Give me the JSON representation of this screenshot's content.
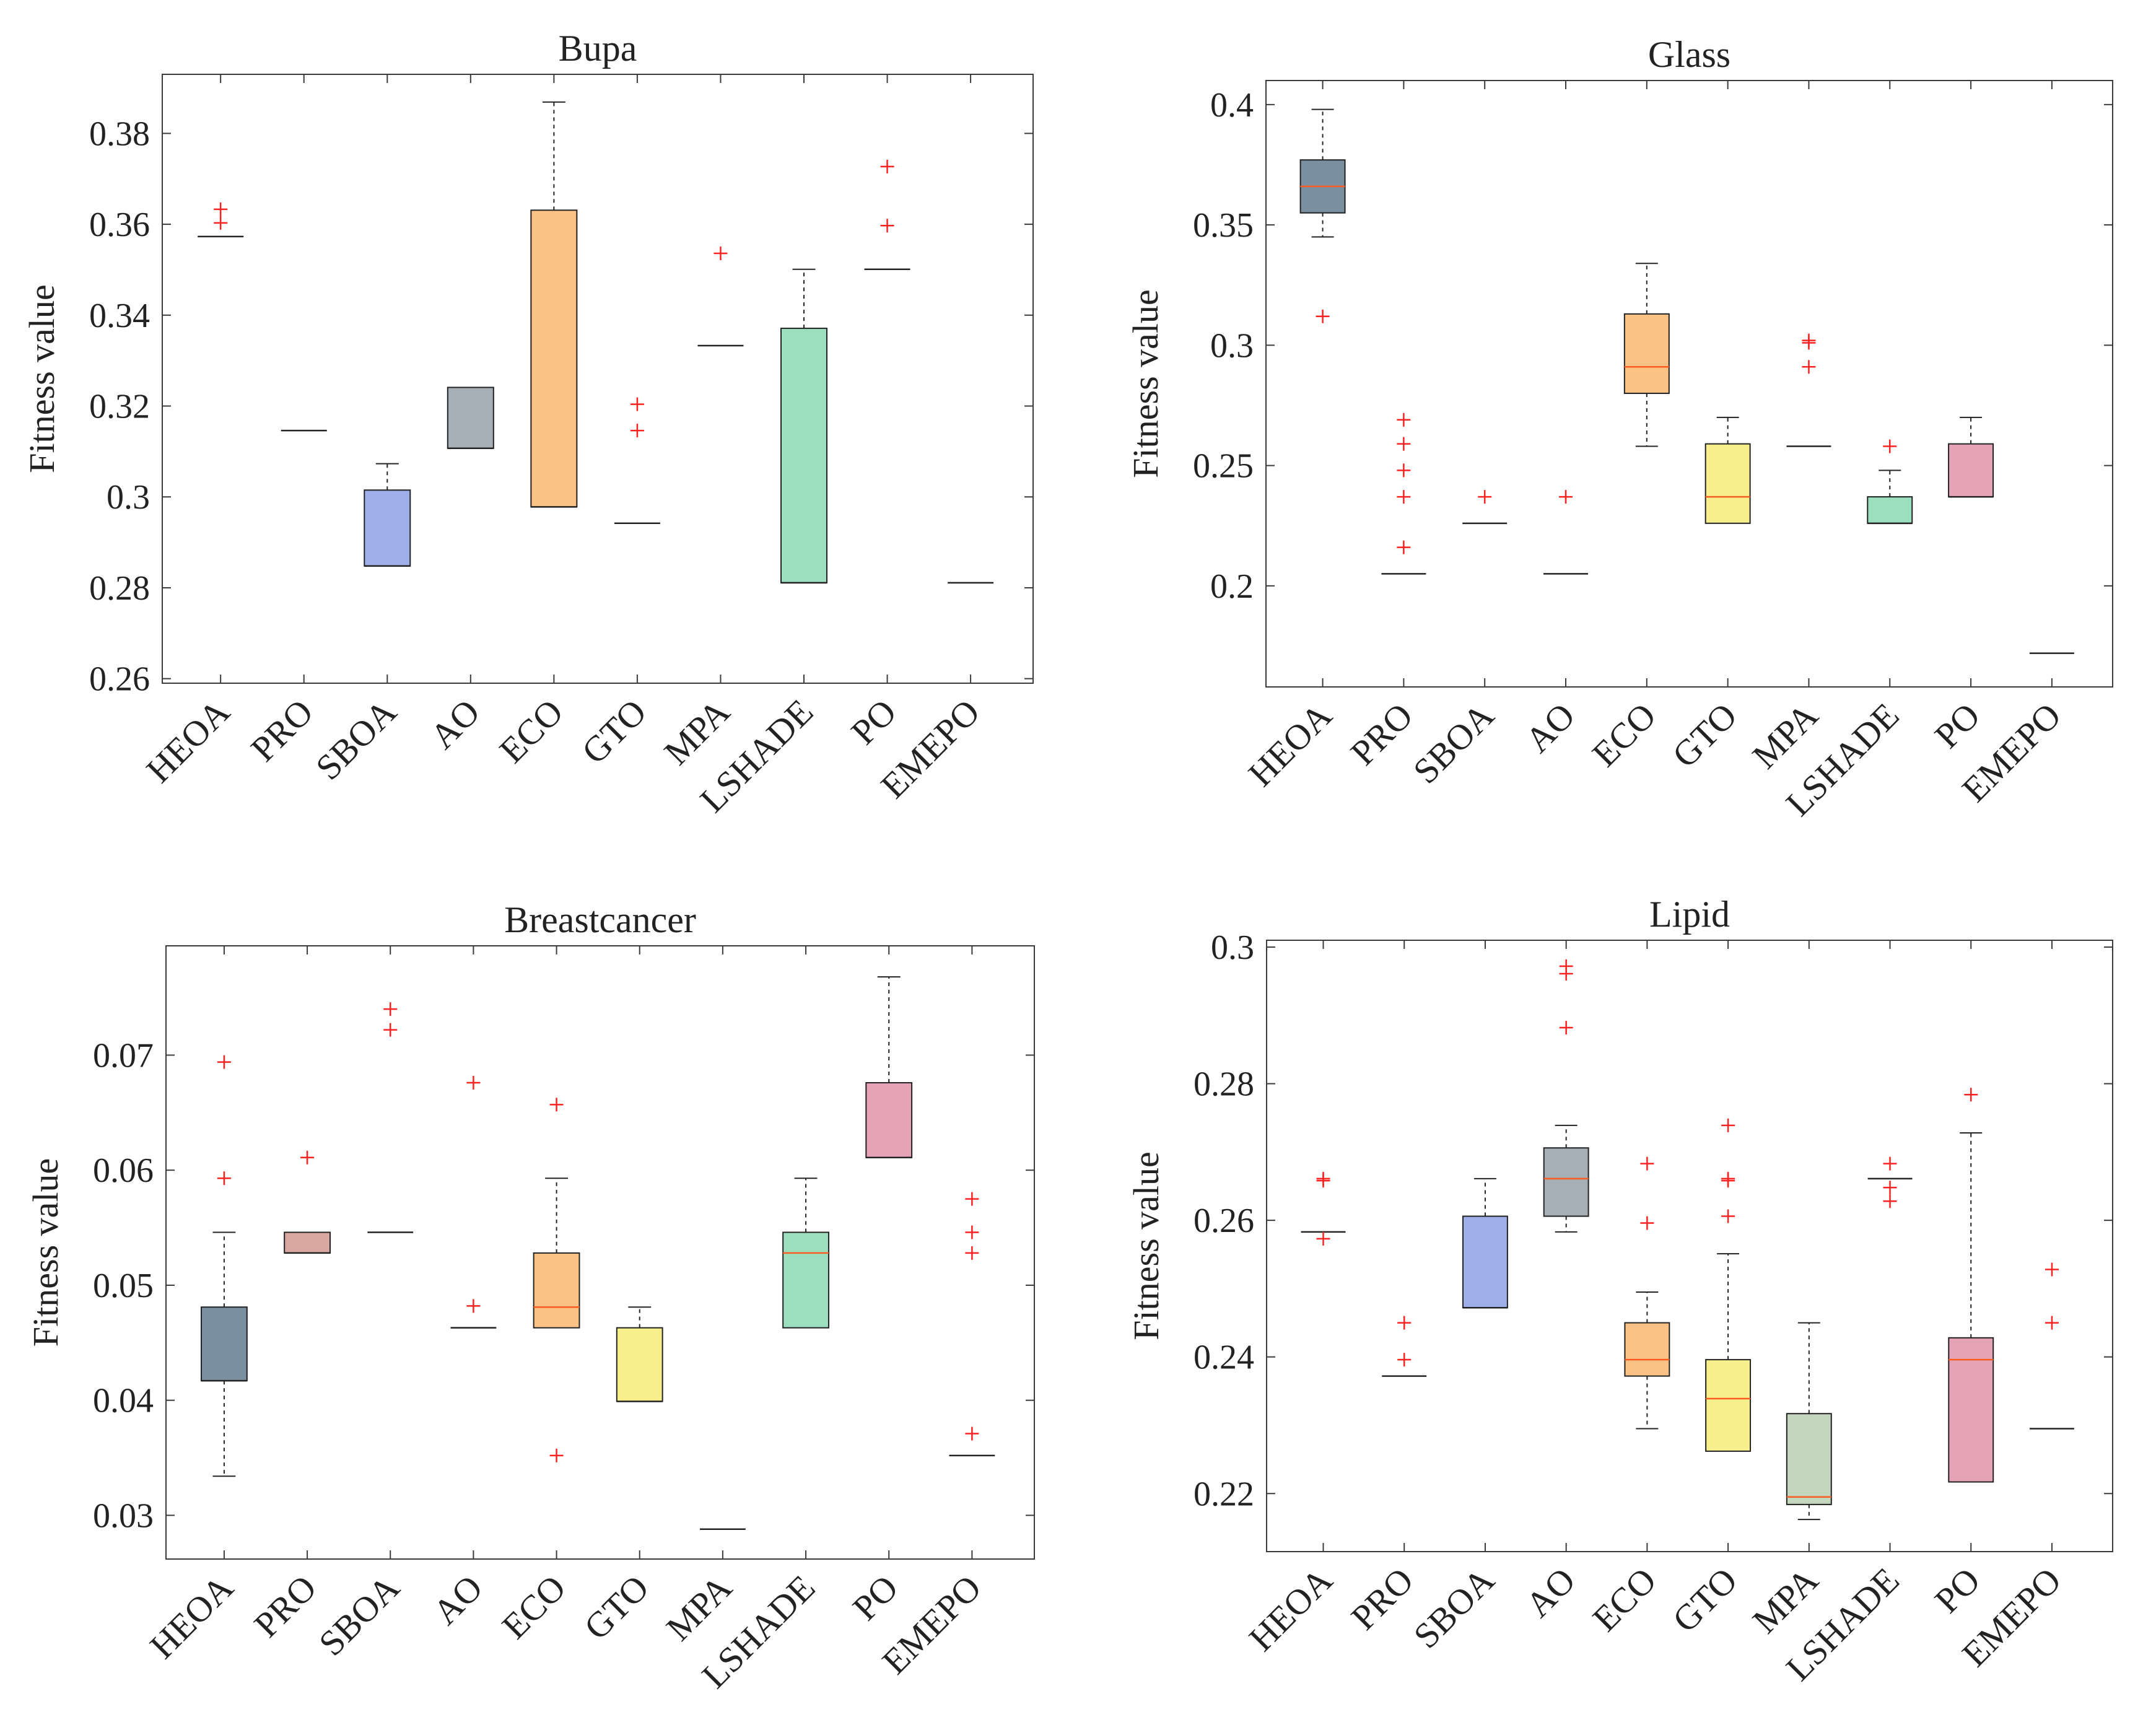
{
  "chart_data": [
    {
      "type": "boxplot",
      "title": "Bupa",
      "ylabel": "Fitness value",
      "xlabel": "",
      "ylim": [
        0.259,
        0.393
      ],
      "yticks": [
        0.26,
        0.28,
        0.3,
        0.32,
        0.34,
        0.36,
        0.38
      ],
      "ytick_labels": [
        "0.26",
        "0.28",
        "0.3",
        "0.32",
        "0.34",
        "0.36",
        "0.38"
      ],
      "categories": [
        "HEOA",
        "PRO",
        "SBOA",
        "AO",
        "ECO",
        "GTO",
        "MPA",
        "LSHADE",
        "PO",
        "EMEPO"
      ],
      "boxes": [
        {
          "name": "HEOA",
          "q1": 0.3573,
          "median": 0.3573,
          "q3": 0.3573,
          "whisker_low": 0.3573,
          "whisker_high": 0.3573,
          "outliers": [
            0.3603,
            0.3633
          ],
          "color": "#7a8fa0"
        },
        {
          "name": "PRO",
          "q1": 0.3146,
          "median": 0.3146,
          "q3": 0.3146,
          "whisker_low": 0.3146,
          "whisker_high": 0.3146,
          "outliers": [],
          "color": "#d8a8a0"
        },
        {
          "name": "SBOA",
          "q1": 0.2848,
          "median": 0.2848,
          "q3": 0.3015,
          "whisker_low": 0.2848,
          "whisker_high": 0.3073,
          "outliers": [],
          "color": "#9eaee8"
        },
        {
          "name": "AO",
          "q1": 0.3107,
          "median": 0.3107,
          "q3": 0.3241,
          "whisker_low": 0.3107,
          "whisker_high": 0.3241,
          "outliers": [],
          "color": "#a6aeb6"
        },
        {
          "name": "ECO",
          "q1": 0.2978,
          "median": 0.2978,
          "q3": 0.3631,
          "whisker_low": 0.2978,
          "whisker_high": 0.3869,
          "outliers": [],
          "color": "#fcc285"
        },
        {
          "name": "GTO",
          "q1": 0.2942,
          "median": 0.2942,
          "q3": 0.2942,
          "whisker_low": 0.2942,
          "whisker_high": 0.2942,
          "outliers": [
            0.3146,
            0.3204
          ],
          "color": "#f7ee8c"
        },
        {
          "name": "MPA",
          "q1": 0.3333,
          "median": 0.3333,
          "q3": 0.3333,
          "whisker_low": 0.3333,
          "whisker_high": 0.3333,
          "outliers": [
            0.3536
          ],
          "color": "#c5d6bf"
        },
        {
          "name": "LSHADE",
          "q1": 0.2811,
          "median": 0.2811,
          "q3": 0.3371,
          "whisker_low": 0.2811,
          "whisker_high": 0.3501,
          "outliers": [],
          "color": "#9cdfbf"
        },
        {
          "name": "PO",
          "q1": 0.3501,
          "median": 0.3501,
          "q3": 0.3501,
          "whisker_low": 0.3501,
          "whisker_high": 0.3501,
          "outliers": [
            0.3597,
            0.3727
          ],
          "color": "#e6a3b8"
        },
        {
          "name": "EMEPO",
          "q1": 0.2811,
          "median": 0.2811,
          "q3": 0.2811,
          "whisker_low": 0.2811,
          "whisker_high": 0.2811,
          "outliers": [],
          "color": "#eeeeee"
        }
      ]
    },
    {
      "type": "boxplot",
      "title": "Glass",
      "ylabel": "Fitness value",
      "xlabel": "",
      "ylim": [
        0.158,
        0.41
      ],
      "yticks": [
        0.2,
        0.25,
        0.3,
        0.35,
        0.4
      ],
      "ytick_labels": [
        "0.2",
        "0.25",
        "0.3",
        "0.35",
        "0.4"
      ],
      "categories": [
        "HEOA",
        "PRO",
        "SBOA",
        "AO",
        "ECO",
        "GTO",
        "MPA",
        "LSHADE",
        "PO",
        "EMEPO"
      ],
      "boxes": [
        {
          "name": "HEOA",
          "q1": 0.355,
          "median": 0.366,
          "q3": 0.377,
          "whisker_low": 0.345,
          "whisker_high": 0.398,
          "outliers": [
            0.312
          ],
          "color": "#7a8fa0"
        },
        {
          "name": "PRO",
          "q1": 0.205,
          "median": 0.205,
          "q3": 0.205,
          "whisker_low": 0.205,
          "whisker_high": 0.205,
          "outliers": [
            0.216,
            0.237,
            0.248,
            0.259,
            0.269
          ],
          "color": "#d8a8a0"
        },
        {
          "name": "SBOA",
          "q1": 0.226,
          "median": 0.226,
          "q3": 0.226,
          "whisker_low": 0.226,
          "whisker_high": 0.226,
          "outliers": [
            0.237
          ],
          "color": "#9eaee8"
        },
        {
          "name": "AO",
          "q1": 0.205,
          "median": 0.205,
          "q3": 0.205,
          "whisker_low": 0.205,
          "whisker_high": 0.205,
          "outliers": [
            0.237
          ],
          "color": "#a6aeb6"
        },
        {
          "name": "ECO",
          "q1": 0.28,
          "median": 0.291,
          "q3": 0.313,
          "whisker_low": 0.258,
          "whisker_high": 0.334,
          "outliers": [],
          "color": "#fcc285"
        },
        {
          "name": "GTO",
          "q1": 0.226,
          "median": 0.237,
          "q3": 0.259,
          "whisker_low": 0.226,
          "whisker_high": 0.27,
          "outliers": [],
          "color": "#f7ee8c"
        },
        {
          "name": "MPA",
          "q1": 0.258,
          "median": 0.258,
          "q3": 0.258,
          "whisker_low": 0.258,
          "whisker_high": 0.258,
          "outliers": [
            0.291,
            0.301,
            0.302
          ],
          "color": "#c5d6bf"
        },
        {
          "name": "LSHADE",
          "q1": 0.226,
          "median": 0.226,
          "q3": 0.237,
          "whisker_low": 0.226,
          "whisker_high": 0.248,
          "outliers": [
            0.258
          ],
          "color": "#9cdfbf"
        },
        {
          "name": "PO",
          "q1": 0.237,
          "median": 0.237,
          "q3": 0.259,
          "whisker_low": 0.237,
          "whisker_high": 0.27,
          "outliers": [],
          "color": "#e6a3b8"
        },
        {
          "name": "EMEPO",
          "q1": 0.172,
          "median": 0.172,
          "q3": 0.172,
          "whisker_low": 0.172,
          "whisker_high": 0.172,
          "outliers": [],
          "color": "#eeeeee"
        }
      ]
    },
    {
      "type": "boxplot",
      "title": "Breastcancer",
      "ylabel": "Fitness value",
      "xlabel": "",
      "ylim": [
        0.0262,
        0.0795
      ],
      "yticks": [
        0.03,
        0.04,
        0.05,
        0.06,
        0.07
      ],
      "ytick_labels": [
        "0.03",
        "0.04",
        "0.05",
        "0.06",
        "0.07"
      ],
      "categories": [
        "HEOA",
        "PRO",
        "SBOA",
        "AO",
        "ECO",
        "GTO",
        "MPA",
        "LSHADE",
        "PO",
        "EMEPO"
      ],
      "boxes": [
        {
          "name": "HEOA",
          "q1": 0.0417,
          "median": 0.0417,
          "q3": 0.0481,
          "whisker_low": 0.0334,
          "whisker_high": 0.0546,
          "outliers": [
            0.0593,
            0.0694
          ],
          "color": "#7a8fa0"
        },
        {
          "name": "PRO",
          "q1": 0.0528,
          "median": 0.0528,
          "q3": 0.0546,
          "whisker_low": 0.0528,
          "whisker_high": 0.0546,
          "outliers": [
            0.0611
          ],
          "color": "#d8a8a0"
        },
        {
          "name": "SBOA",
          "q1": 0.0546,
          "median": 0.0546,
          "q3": 0.0546,
          "whisker_low": 0.0546,
          "whisker_high": 0.0546,
          "outliers": [
            0.0722,
            0.074
          ],
          "color": "#9eaee8"
        },
        {
          "name": "AO",
          "q1": 0.0463,
          "median": 0.0463,
          "q3": 0.0463,
          "whisker_low": 0.0463,
          "whisker_high": 0.0463,
          "outliers": [
            0.0482,
            0.0676
          ],
          "color": "#a6aeb6"
        },
        {
          "name": "ECO",
          "q1": 0.0463,
          "median": 0.0481,
          "q3": 0.0528,
          "whisker_low": 0.0463,
          "whisker_high": 0.0593,
          "outliers": [
            0.0352,
            0.0657
          ],
          "color": "#fcc285"
        },
        {
          "name": "GTO",
          "q1": 0.0399,
          "median": 0.0399,
          "q3": 0.0463,
          "whisker_low": 0.0399,
          "whisker_high": 0.0481,
          "outliers": [],
          "color": "#f7ee8c"
        },
        {
          "name": "MPA",
          "q1": 0.0288,
          "median": 0.0288,
          "q3": 0.0288,
          "whisker_low": 0.0288,
          "whisker_high": 0.0288,
          "outliers": [],
          "color": "#c5d6bf"
        },
        {
          "name": "LSHADE",
          "q1": 0.0463,
          "median": 0.0528,
          "q3": 0.0546,
          "whisker_low": 0.0463,
          "whisker_high": 0.0593,
          "outliers": [],
          "color": "#9cdfbf"
        },
        {
          "name": "PO",
          "q1": 0.0611,
          "median": 0.0611,
          "q3": 0.0676,
          "whisker_low": 0.0611,
          "whisker_high": 0.0768,
          "outliers": [],
          "color": "#e6a3b8"
        },
        {
          "name": "EMEPO",
          "q1": 0.0352,
          "median": 0.0352,
          "q3": 0.0352,
          "whisker_low": 0.0352,
          "whisker_high": 0.0352,
          "outliers": [
            0.0371,
            0.0528,
            0.0546,
            0.0575
          ],
          "color": "#eeeeee"
        }
      ]
    },
    {
      "type": "boxplot",
      "title": "Lipid",
      "ylabel": "Fitness value",
      "xlabel": "",
      "ylim": [
        0.2115,
        0.301
      ],
      "yticks": [
        0.22,
        0.24,
        0.26,
        0.28,
        0.3
      ],
      "ytick_labels": [
        "0.22",
        "0.24",
        "0.26",
        "0.28",
        "0.3"
      ],
      "categories": [
        "HEOA",
        "PRO",
        "SBOA",
        "AO",
        "ECO",
        "GTO",
        "MPA",
        "LSHADE",
        "PO",
        "EMEPO"
      ],
      "boxes": [
        {
          "name": "HEOA",
          "q1": 0.2583,
          "median": 0.2583,
          "q3": 0.2583,
          "whisker_low": 0.2583,
          "whisker_high": 0.2583,
          "outliers": [
            0.2573,
            0.2658,
            0.2661
          ],
          "color": "#7a8fa0"
        },
        {
          "name": "PRO",
          "q1": 0.2372,
          "median": 0.2372,
          "q3": 0.2372,
          "whisker_low": 0.2372,
          "whisker_high": 0.2372,
          "outliers": [
            0.2396,
            0.245
          ],
          "color": "#d8a8a0"
        },
        {
          "name": "SBOA",
          "q1": 0.2472,
          "median": 0.2472,
          "q3": 0.2606,
          "whisker_low": 0.2472,
          "whisker_high": 0.2661,
          "outliers": [],
          "color": "#9eaee8"
        },
        {
          "name": "AO",
          "q1": 0.2606,
          "median": 0.2661,
          "q3": 0.2706,
          "whisker_low": 0.2583,
          "whisker_high": 0.2739,
          "outliers": [
            0.2882,
            0.2961,
            0.2972
          ],
          "color": "#a6aeb6"
        },
        {
          "name": "ECO",
          "q1": 0.2372,
          "median": 0.2396,
          "q3": 0.245,
          "whisker_low": 0.2295,
          "whisker_high": 0.2495,
          "outliers": [
            0.2596,
            0.2683
          ],
          "color": "#fcc285"
        },
        {
          "name": "GTO",
          "q1": 0.2262,
          "median": 0.2339,
          "q3": 0.2396,
          "whisker_low": 0.2262,
          "whisker_high": 0.2551,
          "outliers": [
            0.2606,
            0.2658,
            0.2661,
            0.2739
          ],
          "color": "#f7ee8c"
        },
        {
          "name": "MPA",
          "q1": 0.2184,
          "median": 0.2195,
          "q3": 0.2317,
          "whisker_low": 0.2162,
          "whisker_high": 0.245,
          "outliers": [],
          "color": "#c5d6bf"
        },
        {
          "name": "LSHADE",
          "q1": 0.2661,
          "median": 0.2661,
          "q3": 0.2661,
          "whisker_low": 0.2661,
          "whisker_high": 0.2661,
          "outliers": [
            0.2628,
            0.2648,
            0.2683
          ],
          "color": "#9cdfbf"
        },
        {
          "name": "PO",
          "q1": 0.2217,
          "median": 0.2396,
          "q3": 0.2428,
          "whisker_low": 0.2217,
          "whisker_high": 0.2728,
          "outliers": [
            0.2784
          ],
          "color": "#e6a3b8"
        },
        {
          "name": "EMEPO",
          "q1": 0.2295,
          "median": 0.2295,
          "q3": 0.2295,
          "whisker_low": 0.2295,
          "whisker_high": 0.2295,
          "outliers": [
            0.245,
            0.2528
          ],
          "color": "#eeeeee"
        }
      ]
    }
  ]
}
